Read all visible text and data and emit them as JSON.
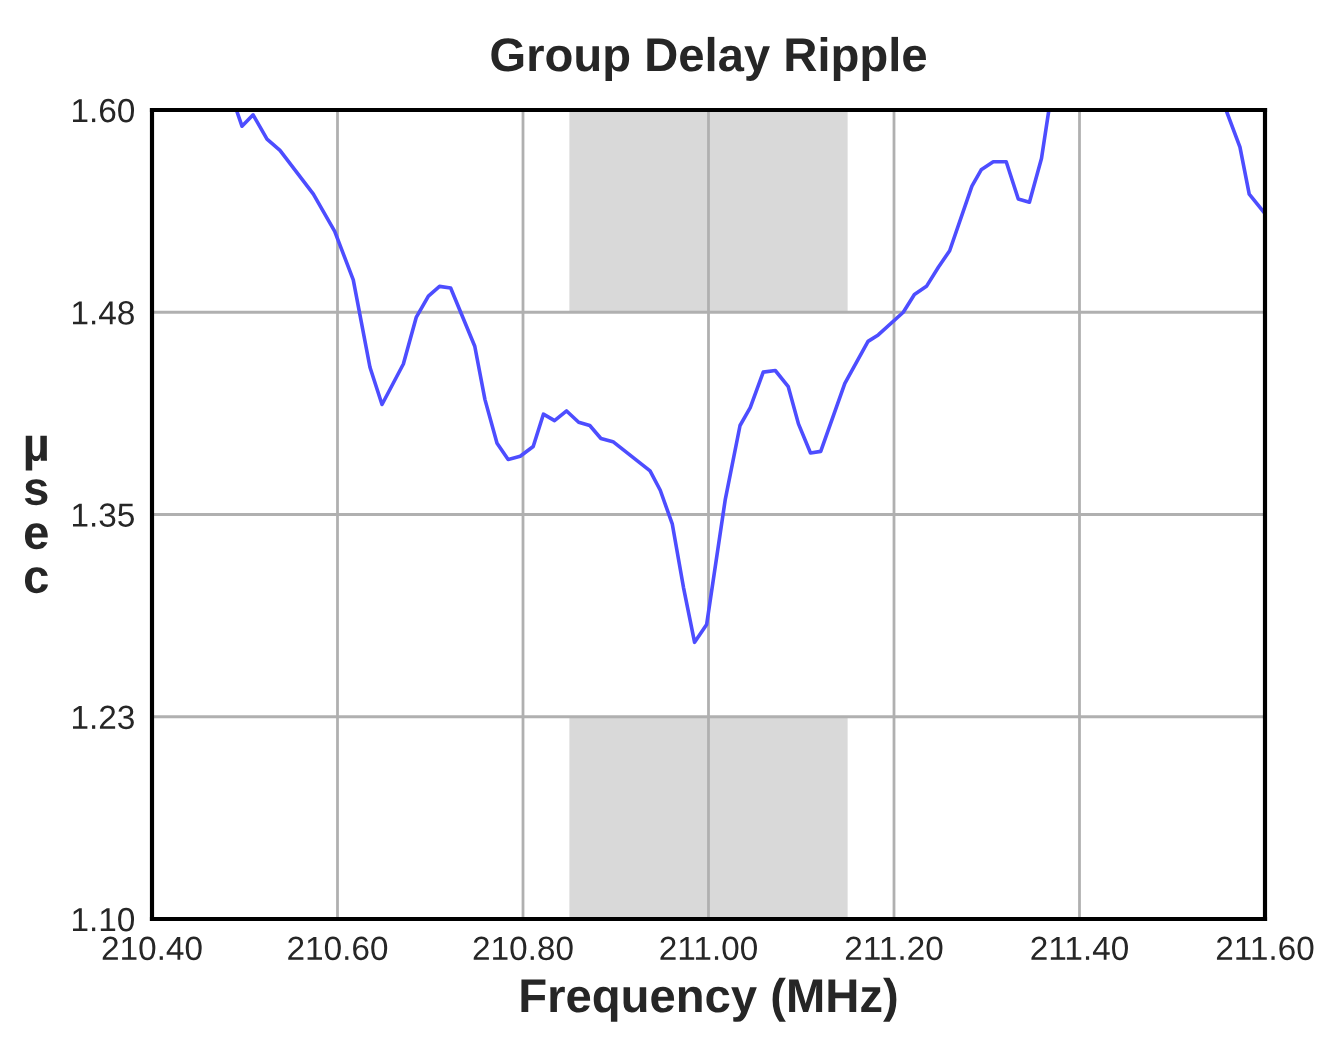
{
  "chart_data": {
    "type": "line",
    "title": "Group Delay Ripple",
    "xlabel": "Frequency (MHz)",
    "ylabel": "µsec",
    "x": [
      210.491,
      210.497,
      210.509,
      210.524,
      210.538,
      210.574,
      210.597,
      210.617,
      210.635,
      210.648,
      210.671,
      210.685,
      210.698,
      210.71,
      210.722,
      210.748,
      210.759,
      210.772,
      210.784,
      210.797,
      210.811,
      210.822,
      210.834,
      210.847,
      210.86,
      210.872,
      210.884,
      210.897,
      210.937,
      210.948,
      210.961,
      210.973,
      210.985,
      210.998,
      211.018,
      211.034,
      211.045,
      211.059,
      211.072,
      211.086,
      211.097,
      211.11,
      211.121,
      211.147,
      211.172,
      211.183,
      211.21,
      211.222,
      211.235,
      211.248,
      211.26,
      211.284,
      211.294,
      211.307,
      211.321,
      211.334,
      211.346,
      211.359,
      211.367,
      211.46,
      211.558,
      211.573,
      211.583,
      211.6
    ],
    "series": [
      {
        "color": "#4d4dff",
        "values": [
          1.6,
          1.59,
          1.597,
          1.582,
          1.575,
          1.548,
          1.525,
          1.495,
          1.441,
          1.418,
          1.443,
          1.472,
          1.485,
          1.491,
          1.49,
          1.454,
          1.421,
          1.394,
          1.384,
          1.386,
          1.392,
          1.412,
          1.408,
          1.414,
          1.407,
          1.405,
          1.397,
          1.395,
          1.377,
          1.365,
          1.344,
          1.305,
          1.271,
          1.282,
          1.359,
          1.405,
          1.416,
          1.438,
          1.439,
          1.429,
          1.406,
          1.388,
          1.389,
          1.431,
          1.457,
          1.461,
          1.475,
          1.486,
          1.491,
          1.503,
          1.513,
          1.553,
          1.563,
          1.568,
          1.568,
          1.545,
          1.543,
          1.57,
          1.6,
          null,
          1.6,
          1.577,
          1.548,
          1.536
        ]
      }
    ],
    "xlim": [
      210.4,
      211.6
    ],
    "xticks": [
      {
        "value": 210.4,
        "label": "210.40"
      },
      {
        "value": 210.6,
        "label": "210.60"
      },
      {
        "value": 210.8,
        "label": "210.80"
      },
      {
        "value": 211.0,
        "label": "211.00"
      },
      {
        "value": 211.2,
        "label": "211.20"
      },
      {
        "value": 211.4,
        "label": "211.40"
      },
      {
        "value": 211.6,
        "label": "211.60"
      }
    ],
    "ylim": [
      1.1,
      1.6
    ],
    "yticks": [
      {
        "value": 1.1,
        "label": "1.10"
      },
      {
        "value": 1.225,
        "label": "1.23"
      },
      {
        "value": 1.35,
        "label": "1.35"
      },
      {
        "value": 1.475,
        "label": "1.48"
      },
      {
        "value": 1.6,
        "label": "1.60"
      }
    ],
    "bands": [
      {
        "axis": "x",
        "from": 210.85,
        "to": 211.15,
        "color": "#d9d9d9"
      },
      {
        "axis": "y",
        "from": 1.225,
        "to": 1.475,
        "color": "#ffffff"
      }
    ],
    "grid": true,
    "legend": false,
    "marker": "none",
    "line_style": "solid"
  }
}
